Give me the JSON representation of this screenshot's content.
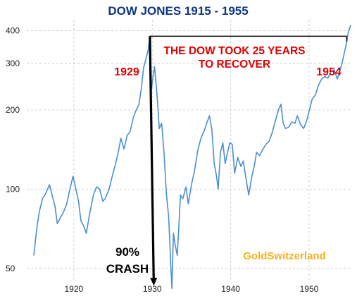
{
  "chart_data": {
    "type": "line",
    "title": "DOW JONES 1915 - 1955",
    "y_scale": "log",
    "ylim": [
      45,
      440
    ],
    "xlim": [
      1914.0,
      1955.3
    ],
    "y_ticks": [
      50,
      100,
      200,
      300,
      400
    ],
    "x_ticks": [
      1920,
      1930,
      1940,
      1950
    ],
    "grid": true,
    "series": [
      {
        "color": "#4a8fd0",
        "points": [
          [
            1914.9,
            56
          ],
          [
            1915.3,
            72
          ],
          [
            1915.6,
            82
          ],
          [
            1916.0,
            92
          ],
          [
            1916.4,
            96
          ],
          [
            1916.9,
            104
          ],
          [
            1917.2,
            96
          ],
          [
            1917.6,
            86
          ],
          [
            1917.9,
            74
          ],
          [
            1918.3,
            78
          ],
          [
            1918.7,
            82
          ],
          [
            1919.1,
            88
          ],
          [
            1919.5,
            100
          ],
          [
            1919.9,
            112
          ],
          [
            1920.2,
            102
          ],
          [
            1920.6,
            90
          ],
          [
            1920.9,
            76
          ],
          [
            1921.3,
            72
          ],
          [
            1921.6,
            68
          ],
          [
            1922.0,
            80
          ],
          [
            1922.5,
            95
          ],
          [
            1922.9,
            102
          ],
          [
            1923.3,
            100
          ],
          [
            1923.7,
            90
          ],
          [
            1924.0,
            92
          ],
          [
            1924.5,
            100
          ],
          [
            1924.9,
            112
          ],
          [
            1925.3,
            124
          ],
          [
            1925.7,
            140
          ],
          [
            1926.0,
            156
          ],
          [
            1926.4,
            142
          ],
          [
            1926.8,
            160
          ],
          [
            1927.2,
            166
          ],
          [
            1927.6,
            188
          ],
          [
            1927.9,
            198
          ],
          [
            1928.3,
            210
          ],
          [
            1928.6,
            240
          ],
          [
            1928.9,
            290
          ],
          [
            1929.2,
            312
          ],
          [
            1929.5,
            340
          ],
          [
            1929.7,
            381
          ],
          [
            1929.9,
            238
          ],
          [
            1930.1,
            268
          ],
          [
            1930.3,
            292
          ],
          [
            1930.6,
            230
          ],
          [
            1930.9,
            170
          ],
          [
            1931.2,
            178
          ],
          [
            1931.5,
            138
          ],
          [
            1931.8,
            96
          ],
          [
            1932.1,
            78
          ],
          [
            1932.3,
            57
          ],
          [
            1932.5,
            42
          ],
          [
            1932.7,
            68
          ],
          [
            1932.9,
            62
          ],
          [
            1933.2,
            56
          ],
          [
            1933.6,
            95
          ],
          [
            1933.9,
            92
          ],
          [
            1934.3,
            102
          ],
          [
            1934.6,
            88
          ],
          [
            1935.0,
            104
          ],
          [
            1935.4,
            118
          ],
          [
            1935.8,
            140
          ],
          [
            1936.2,
            156
          ],
          [
            1936.6,
            166
          ],
          [
            1937.0,
            180
          ],
          [
            1937.3,
            190
          ],
          [
            1937.6,
            168
          ],
          [
            1937.9,
            125
          ],
          [
            1938.2,
            112
          ],
          [
            1938.4,
            100
          ],
          [
            1938.7,
            138
          ],
          [
            1939.0,
            150
          ],
          [
            1939.3,
            125
          ],
          [
            1939.6,
            138
          ],
          [
            1939.9,
            150
          ],
          [
            1940.2,
            148
          ],
          [
            1940.5,
            115
          ],
          [
            1940.9,
            132
          ],
          [
            1941.3,
            122
          ],
          [
            1941.6,
            128
          ],
          [
            1941.9,
            112
          ],
          [
            1942.3,
            95
          ],
          [
            1942.7,
            112
          ],
          [
            1943.0,
            122
          ],
          [
            1943.3,
            138
          ],
          [
            1943.7,
            134
          ],
          [
            1944.0,
            140
          ],
          [
            1944.5,
            148
          ],
          [
            1944.9,
            152
          ],
          [
            1945.3,
            164
          ],
          [
            1945.7,
            182
          ],
          [
            1946.1,
            200
          ],
          [
            1946.4,
            210
          ],
          [
            1946.7,
            178
          ],
          [
            1947.0,
            170
          ],
          [
            1947.4,
            172
          ],
          [
            1947.8,
            180
          ],
          [
            1948.2,
            178
          ],
          [
            1948.5,
            190
          ],
          [
            1948.9,
            176
          ],
          [
            1949.3,
            170
          ],
          [
            1949.7,
            182
          ],
          [
            1950.0,
            198
          ],
          [
            1950.4,
            220
          ],
          [
            1950.8,
            228
          ],
          [
            1951.2,
            248
          ],
          [
            1951.6,
            262
          ],
          [
            1952.0,
            268
          ],
          [
            1952.4,
            264
          ],
          [
            1952.8,
            280
          ],
          [
            1953.2,
            284
          ],
          [
            1953.6,
            262
          ],
          [
            1953.9,
            280
          ],
          [
            1954.2,
            300
          ],
          [
            1954.5,
            330
          ],
          [
            1954.8,
            362
          ],
          [
            1955.0,
            395
          ],
          [
            1955.3,
            420
          ]
        ]
      }
    ],
    "annotations": {
      "year_start": "1929",
      "year_end": "1954",
      "note_line1": "THE DOW TOOK 25 YEARS",
      "note_line2": "TO RECOVER",
      "crash_line1": "90%",
      "crash_line2": "CRASH",
      "recovery_level": 381,
      "crash_from": [
        1929.7,
        381
      ],
      "crash_to": [
        1930.2,
        43
      ]
    },
    "watermark": "GoldSwitzerland"
  }
}
